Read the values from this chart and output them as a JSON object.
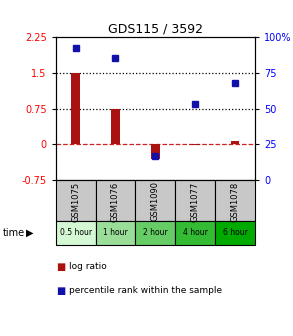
{
  "title": "GDS115 / 3592",
  "samples": [
    "GSM1075",
    "GSM1076",
    "GSM1090",
    "GSM1077",
    "GSM1078"
  ],
  "time_labels": [
    "0.5 hour",
    "1 hour",
    "2 hour",
    "4 hour",
    "6 hour"
  ],
  "time_colors": [
    "#d4f7d4",
    "#99dd99",
    "#66cc66",
    "#33bb33",
    "#00aa00"
  ],
  "log_ratio": [
    1.5,
    0.75,
    -0.3,
    -0.02,
    0.07
  ],
  "percentile": [
    92,
    85,
    17,
    53,
    68
  ],
  "left_ylim": [
    -0.75,
    2.25
  ],
  "right_ylim": [
    0,
    100
  ],
  "left_yticks": [
    -0.75,
    0,
    0.75,
    1.5,
    2.25
  ],
  "right_yticks": [
    0,
    25,
    50,
    75,
    100
  ],
  "hline_y": [
    0.75,
    1.5
  ],
  "bar_color": "#aa1111",
  "dot_color": "#1111aa",
  "gsm_bg": "#c8c8c8"
}
